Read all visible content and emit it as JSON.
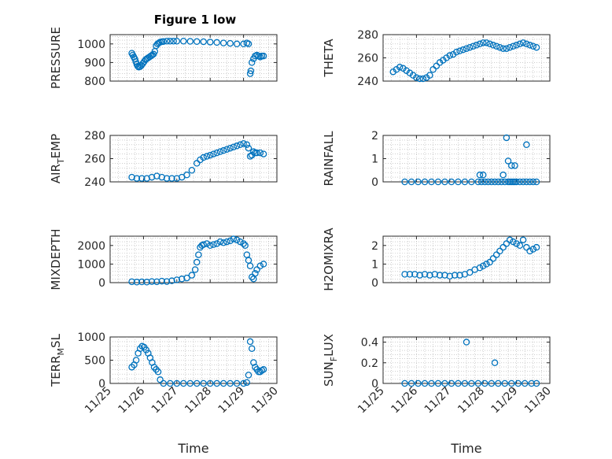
{
  "figure_title": "Figure 1 low",
  "marker_color": "#0072bd",
  "chart_data": [
    {
      "type": "scatter",
      "ylabel_main": "PRESSURE",
      "ylabel_sub": "",
      "ylim": [
        800,
        1050
      ],
      "yticks": [
        800,
        900,
        1000
      ],
      "xticks": [
        "11/25",
        "11/26",
        "11/27",
        "11/28",
        "11/29",
        "11/30"
      ],
      "xlim": [
        0,
        5
      ],
      "xlabel": "",
      "grid": true,
      "x": [
        0.65,
        0.68,
        0.71,
        0.74,
        0.77,
        0.8,
        0.83,
        0.86,
        0.9,
        0.94,
        0.98,
        1.02,
        1.06,
        1.1,
        1.14,
        1.18,
        1.22,
        1.26,
        1.3,
        1.34,
        1.38,
        1.42,
        1.46,
        1.5,
        1.55,
        1.6,
        1.7,
        1.8,
        1.9,
        2.0,
        2.2,
        2.4,
        2.6,
        2.8,
        3.0,
        3.2,
        3.4,
        3.6,
        3.8,
        4.0,
        4.1,
        4.15,
        4.2,
        4.22,
        4.25,
        4.3,
        4.35,
        4.4,
        4.45,
        4.5,
        4.55,
        4.6
      ],
      "y": [
        950,
        940,
        930,
        920,
        905,
        890,
        880,
        875,
        878,
        885,
        895,
        905,
        915,
        920,
        925,
        930,
        935,
        940,
        945,
        960,
        990,
        1000,
        1005,
        1010,
        1012,
        1013,
        1015,
        1015,
        1015,
        1015,
        1015,
        1014,
        1013,
        1012,
        1010,
        1008,
        1005,
        1003,
        1000,
        1000,
        1005,
        1000,
        840,
        855,
        900,
        920,
        935,
        940,
        935,
        930,
        935,
        935
      ]
    },
    {
      "type": "scatter",
      "ylabel_main": "THETA",
      "ylabel_sub": "",
      "ylim": [
        240,
        280
      ],
      "yticks": [
        240,
        260,
        280
      ],
      "xticks": [
        "11/25",
        "11/26",
        "11/27",
        "11/28",
        "11/29",
        "11/30"
      ],
      "xlim": [
        0,
        5
      ],
      "xlabel": "",
      "grid": true,
      "x": [
        0.3,
        0.4,
        0.5,
        0.6,
        0.7,
        0.8,
        0.9,
        1.0,
        1.1,
        1.2,
        1.3,
        1.4,
        1.5,
        1.6,
        1.7,
        1.8,
        1.9,
        2.0,
        2.1,
        2.2,
        2.3,
        2.4,
        2.5,
        2.6,
        2.7,
        2.8,
        2.9,
        3.0,
        3.1,
        3.2,
        3.3,
        3.4,
        3.5,
        3.6,
        3.7,
        3.8,
        3.9,
        4.0,
        4.1,
        4.2,
        4.3,
        4.4,
        4.5,
        4.6
      ],
      "y": [
        248,
        250,
        252,
        251,
        249,
        247,
        245,
        243,
        242,
        242,
        243,
        245,
        250,
        253,
        256,
        258,
        260,
        262,
        263,
        265,
        266,
        267,
        268,
        269,
        270,
        271,
        272,
        273,
        273,
        272,
        271,
        270,
        269,
        268,
        268,
        269,
        270,
        271,
        272,
        273,
        272,
        271,
        270,
        269
      ]
    },
    {
      "type": "scatter",
      "ylabel_main": "AIR",
      "ylabel_sub": "T",
      "ylabel_suffix": "EMP",
      "ylim": [
        240,
        280
      ],
      "yticks": [
        240,
        260,
        280
      ],
      "xticks": [
        "11/25",
        "11/26",
        "11/27",
        "11/28",
        "11/29",
        "11/30"
      ],
      "xlim": [
        0,
        5
      ],
      "xlabel": "",
      "grid": true,
      "x": [
        0.65,
        0.8,
        0.95,
        1.1,
        1.25,
        1.4,
        1.55,
        1.7,
        1.85,
        2.0,
        2.15,
        2.3,
        2.45,
        2.6,
        2.7,
        2.8,
        2.9,
        3.0,
        3.1,
        3.2,
        3.3,
        3.4,
        3.5,
        3.6,
        3.7,
        3.8,
        3.9,
        4.0,
        4.1,
        4.15,
        4.2,
        4.25,
        4.3,
        4.35,
        4.4,
        4.5,
        4.6
      ],
      "y": [
        244,
        243,
        243,
        243,
        244,
        245,
        244,
        243,
        243,
        243,
        244,
        246,
        250,
        256,
        259,
        261,
        262,
        263,
        264,
        265,
        266,
        267,
        268,
        269,
        270,
        271,
        272,
        273,
        272,
        269,
        262,
        263,
        266,
        265,
        265,
        265,
        264
      ]
    },
    {
      "type": "scatter",
      "ylabel_main": "RAINFALL",
      "ylabel_sub": "",
      "ylim": [
        0,
        2
      ],
      "yticks": [
        0,
        1,
        2
      ],
      "xticks": [
        "11/25",
        "11/26",
        "11/27",
        "11/28",
        "11/29",
        "11/30"
      ],
      "xlim": [
        0,
        5
      ],
      "xlabel": "",
      "grid": true,
      "x": [
        0.65,
        0.85,
        1.05,
        1.25,
        1.45,
        1.65,
        1.85,
        2.05,
        2.25,
        2.45,
        2.65,
        2.85,
        2.95,
        3.05,
        3.15,
        3.25,
        3.35,
        3.45,
        3.55,
        3.65,
        3.75,
        3.8,
        3.85,
        3.9,
        3.95,
        4.0,
        4.1,
        4.2,
        4.3,
        4.4,
        4.5,
        4.6,
        2.9,
        3.0,
        3.6,
        3.7,
        3.75,
        3.85,
        3.95,
        4.3
      ],
      "y": [
        0,
        0,
        0,
        0,
        0,
        0,
        0,
        0,
        0,
        0,
        0,
        0,
        0,
        0,
        0,
        0,
        0,
        0,
        0,
        0,
        0,
        0,
        0,
        0,
        0,
        0,
        0,
        0,
        0,
        0,
        0,
        0,
        0.3,
        0.3,
        0.3,
        1.9,
        0.9,
        0.7,
        0.7,
        1.6
      ]
    },
    {
      "type": "scatter",
      "ylabel_main": "MIXDEPTH",
      "ylabel_sub": "",
      "ylim": [
        0,
        2500
      ],
      "yticks": [
        0,
        1000,
        2000
      ],
      "xticks": [
        "11/25",
        "11/26",
        "11/27",
        "11/28",
        "11/29",
        "11/30"
      ],
      "xlim": [
        0,
        5
      ],
      "xlabel": "",
      "grid": true,
      "x": [
        0.65,
        0.8,
        0.95,
        1.1,
        1.25,
        1.4,
        1.55,
        1.7,
        1.85,
        2.0,
        2.15,
        2.3,
        2.45,
        2.55,
        2.6,
        2.65,
        2.7,
        2.75,
        2.8,
        2.9,
        3.0,
        3.1,
        3.2,
        3.3,
        3.4,
        3.5,
        3.6,
        3.7,
        3.8,
        3.9,
        4.0,
        4.05,
        4.1,
        4.15,
        4.2,
        4.25,
        4.3,
        4.35,
        4.4,
        4.5,
        4.6
      ],
      "y": [
        50,
        30,
        40,
        30,
        60,
        50,
        80,
        60,
        100,
        150,
        200,
        250,
        400,
        700,
        1100,
        1500,
        1900,
        2000,
        2050,
        2100,
        2000,
        2050,
        2100,
        2200,
        2150,
        2200,
        2250,
        2350,
        2300,
        2200,
        2100,
        2000,
        1500,
        1200,
        900,
        300,
        200,
        500,
        700,
        900,
        1000
      ]
    },
    {
      "type": "scatter",
      "ylabel_main": "H2OMIXRA",
      "ylabel_sub": "",
      "ylim": [
        0,
        2.5
      ],
      "yticks": [
        0,
        1,
        2
      ],
      "xticks": [
        "11/25",
        "11/26",
        "11/27",
        "11/28",
        "11/29",
        "11/30"
      ],
      "xlim": [
        0,
        5
      ],
      "xlabel": "",
      "grid": true,
      "x": [
        0.65,
        0.8,
        0.95,
        1.1,
        1.25,
        1.4,
        1.55,
        1.7,
        1.85,
        2.0,
        2.15,
        2.3,
        2.45,
        2.6,
        2.75,
        2.9,
        3.0,
        3.1,
        3.2,
        3.3,
        3.4,
        3.5,
        3.6,
        3.7,
        3.8,
        3.9,
        4.0,
        4.1,
        4.2,
        4.3,
        4.4,
        4.5,
        4.6
      ],
      "y": [
        0.45,
        0.45,
        0.45,
        0.4,
        0.45,
        0.4,
        0.45,
        0.4,
        0.4,
        0.35,
        0.4,
        0.4,
        0.45,
        0.55,
        0.7,
        0.8,
        0.9,
        1.0,
        1.1,
        1.3,
        1.5,
        1.7,
        1.9,
        2.1,
        2.3,
        2.2,
        2.1,
        2.0,
        2.3,
        1.9,
        1.7,
        1.8,
        1.9
      ]
    },
    {
      "type": "scatter",
      "ylabel_main": "TERR",
      "ylabel_sub": "M",
      "ylabel_suffix": "SL",
      "ylim": [
        0,
        1000
      ],
      "yticks": [
        0,
        500,
        1000
      ],
      "xticks": [
        "11/25",
        "11/26",
        "11/27",
        "11/28",
        "11/29",
        "11/30"
      ],
      "xlim": [
        0,
        5
      ],
      "xlabel": "Time",
      "grid": true,
      "x": [
        0.65,
        0.72,
        0.78,
        0.84,
        0.9,
        0.96,
        1.02,
        1.08,
        1.14,
        1.2,
        1.26,
        1.32,
        1.38,
        1.44,
        1.5,
        1.6,
        1.8,
        2.0,
        2.2,
        2.4,
        2.6,
        2.8,
        3.0,
        3.2,
        3.4,
        3.6,
        3.8,
        4.0,
        4.1,
        4.15,
        4.2,
        4.25,
        4.3,
        4.35,
        4.4,
        4.45,
        4.5,
        4.55,
        4.6
      ],
      "y": [
        350,
        400,
        500,
        650,
        750,
        800,
        780,
        720,
        650,
        550,
        450,
        350,
        300,
        250,
        80,
        0,
        0,
        0,
        0,
        0,
        0,
        0,
        0,
        0,
        0,
        0,
        0,
        0,
        20,
        180,
        900,
        750,
        450,
        350,
        300,
        250,
        250,
        280,
        300
      ]
    },
    {
      "type": "scatter",
      "ylabel_main": "SUN",
      "ylabel_sub": "F",
      "ylabel_suffix": "LUX",
      "ylim": [
        0,
        0.45
      ],
      "yticks": [
        0,
        0.2,
        0.4
      ],
      "xticks": [
        "11/25",
        "11/26",
        "11/27",
        "11/28",
        "11/29",
        "11/30"
      ],
      "xlim": [
        0,
        5
      ],
      "xlabel": "Time",
      "grid": true,
      "x": [
        0.65,
        0.85,
        1.05,
        1.25,
        1.45,
        1.65,
        1.85,
        2.05,
        2.25,
        2.45,
        2.65,
        2.85,
        3.05,
        3.25,
        3.45,
        3.65,
        3.85,
        4.05,
        4.25,
        4.45,
        4.6,
        2.5,
        3.35
      ],
      "y": [
        0,
        0,
        0,
        0,
        0,
        0,
        0,
        0,
        0,
        0,
        0,
        0,
        0,
        0,
        0,
        0,
        0,
        0,
        0,
        0,
        0,
        0.4,
        0.2
      ]
    }
  ]
}
